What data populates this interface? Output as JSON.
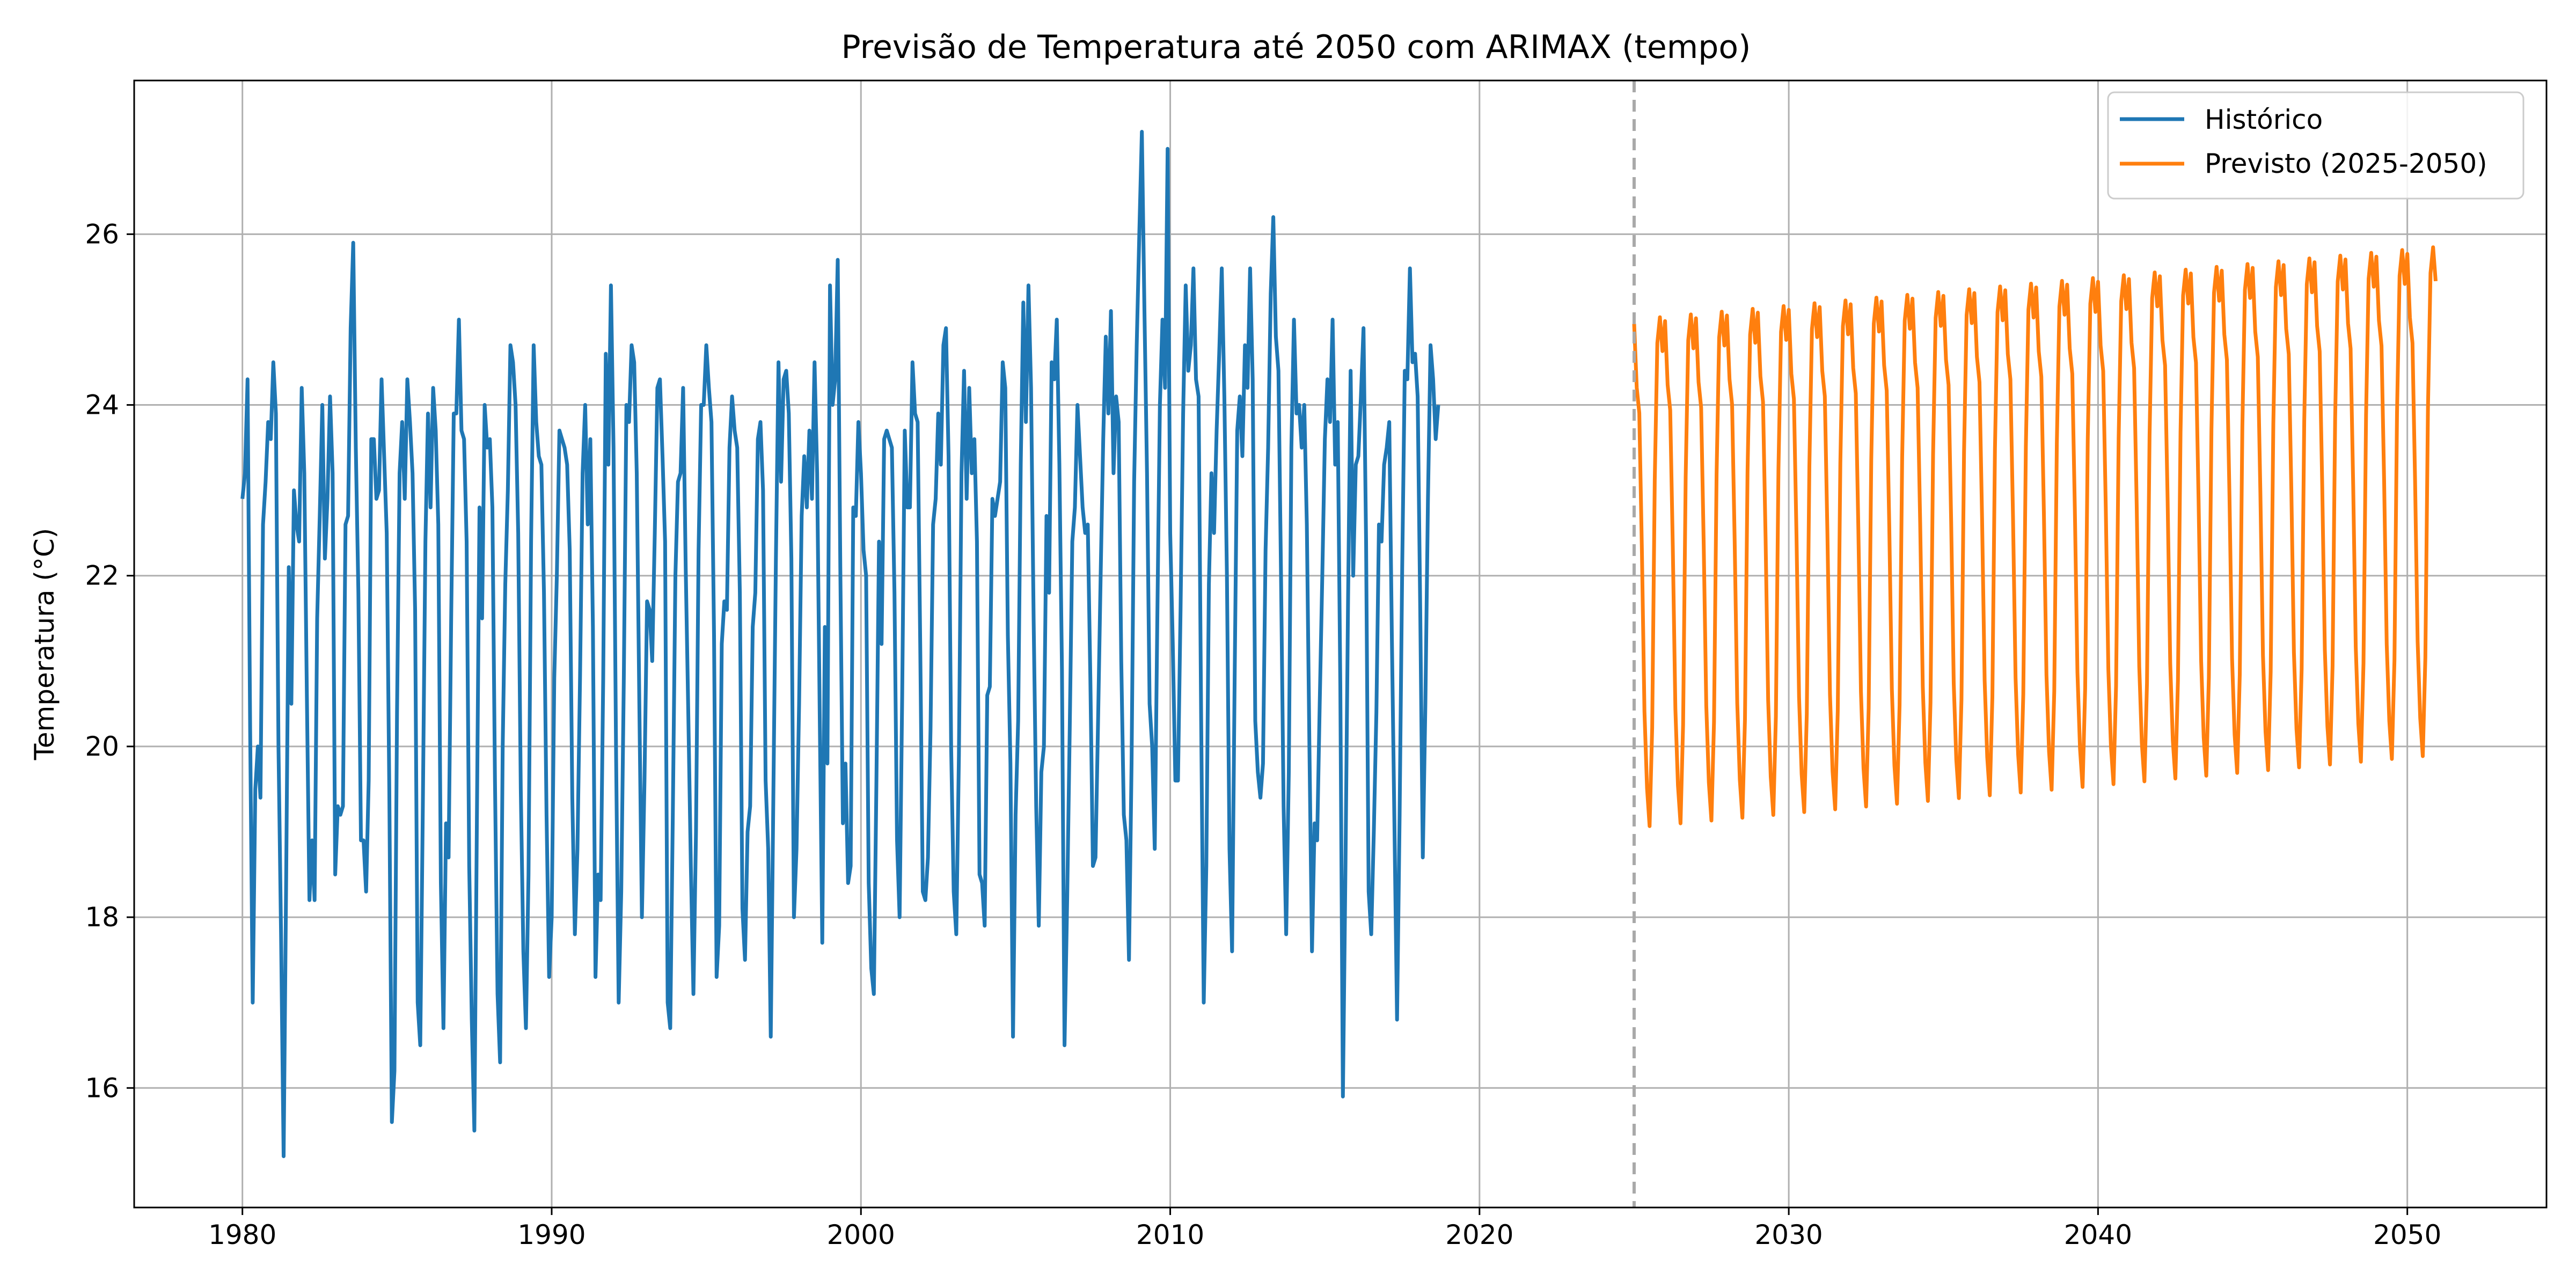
{
  "chart_data": {
    "type": "line",
    "title": "Previsão de Temperatura até 2050 com ARIMAX (tempo)",
    "xlabel": "",
    "ylabel": "Temperatura (°C)",
    "xlim": [
      1976.5,
      2054.5
    ],
    "ylim": [
      14.6,
      27.8
    ],
    "x_ticks": [
      1980,
      1990,
      2000,
      2010,
      2020,
      2030,
      2040,
      2050
    ],
    "y_ticks": [
      16,
      18,
      20,
      22,
      24,
      26
    ],
    "grid": true,
    "legend_position": "top-right",
    "forecast_start_marker": 2025,
    "series": [
      {
        "name": "Histórico",
        "color": "#1f77b4",
        "start_year": 1980.0,
        "step_years": 0.0833333,
        "values": [
          22.9,
          23.2,
          24.3,
          20.2,
          17.0,
          19.5,
          20.0,
          19.4,
          22.6,
          23.1,
          23.8,
          23.6,
          24.5,
          23.9,
          20.0,
          17.8,
          15.2,
          18.5,
          22.1,
          20.5,
          23.0,
          22.6,
          22.4,
          24.2,
          23.2,
          20.6,
          18.2,
          18.9,
          18.2,
          21.5,
          22.7,
          24.0,
          22.2,
          22.9,
          24.1,
          23.2,
          18.5,
          19.3,
          19.2,
          19.3,
          22.6,
          22.7,
          24.9,
          25.9,
          23.5,
          21.8,
          18.9,
          18.9,
          18.3,
          19.6,
          23.6,
          23.6,
          22.9,
          23.0,
          24.3,
          23.4,
          22.5,
          19.5,
          15.6,
          16.2,
          20.4,
          23.2,
          23.8,
          22.9,
          24.3,
          23.8,
          23.2,
          21.6,
          17.0,
          16.5,
          19.3,
          22.4,
          23.9,
          22.8,
          24.2,
          23.7,
          22.6,
          18.4,
          16.7,
          19.1,
          18.7,
          21.5,
          23.9,
          23.9,
          25.0,
          23.7,
          23.6,
          22.4,
          18.6,
          16.8,
          15.5,
          19.2,
          22.8,
          21.5,
          24.0,
          23.5,
          23.6,
          22.8,
          19.6,
          17.1,
          16.3,
          20.0,
          21.9,
          23.0,
          24.7,
          24.5,
          24.0,
          22.5,
          19.5,
          17.6,
          16.7,
          18.5,
          22.4,
          24.7,
          23.8,
          23.4,
          23.3,
          21.8,
          19.2,
          17.3,
          18.0,
          20.8,
          22.0,
          23.7,
          23.6,
          23.5,
          23.3,
          22.3,
          19.4,
          17.8,
          18.8,
          20.8,
          23.2,
          24.0,
          22.6,
          23.6,
          21.4,
          17.3,
          18.5,
          18.2,
          20.8,
          24.6,
          23.3,
          25.4,
          23.5,
          19.9,
          17.0,
          18.3,
          20.8,
          24.0,
          23.8,
          24.7,
          24.5,
          23.2,
          20.5,
          18.0,
          19.6,
          21.7,
          21.6,
          21.0,
          22.5,
          24.2,
          24.3,
          23.4,
          22.4,
          17.0,
          16.7,
          19.2,
          22.0,
          23.1,
          23.2,
          24.2,
          22.1,
          20.4,
          18.6,
          17.1,
          19.0,
          22.3,
          24.0,
          24.0,
          24.7,
          24.2,
          23.8,
          21.3,
          17.3,
          17.9,
          21.2,
          21.7,
          21.6,
          23.5,
          24.1,
          23.7,
          23.5,
          21.8,
          18.1,
          17.5,
          19.0,
          19.3,
          21.4,
          21.8,
          23.6,
          23.8,
          23.0,
          19.6,
          18.8,
          16.6,
          19.4,
          22.2,
          24.5,
          23.1,
          24.3,
          24.4,
          23.9,
          22.2,
          18.0,
          18.8,
          20.5,
          22.7,
          23.4,
          22.8,
          23.7,
          22.9,
          24.5,
          23.2,
          20.4,
          17.7,
          21.4,
          19.8,
          25.4,
          24.0,
          24.3,
          25.7,
          22.1,
          19.1,
          19.8,
          18.4,
          18.6,
          22.8,
          22.7,
          23.8,
          23.2,
          22.3,
          22.0,
          18.4,
          17.4,
          17.1,
          19.6,
          22.4,
          21.2,
          23.6,
          23.7,
          23.6,
          23.5,
          21.8,
          18.9,
          18.0,
          20.6,
          23.7,
          22.8,
          22.8,
          24.5,
          23.9,
          23.8,
          21.2,
          18.3,
          18.2,
          18.7,
          20.2,
          22.6,
          22.9,
          23.9,
          23.3,
          24.7,
          24.9,
          23.4,
          20.0,
          18.3,
          17.8,
          19.9,
          23.2,
          24.4,
          22.9,
          24.2,
          23.2,
          23.6,
          22.4,
          18.5,
          18.4,
          17.9,
          20.6,
          20.7,
          22.9,
          22.7,
          22.9,
          23.1,
          24.5,
          24.2,
          21.3,
          19.8,
          16.6,
          19.2,
          20.3,
          23.3,
          25.2,
          23.8,
          25.4,
          24.2,
          21.5,
          19.3,
          17.9,
          19.7,
          20.0,
          22.7,
          21.8,
          24.5,
          24.3,
          25.0,
          23.3,
          20.9,
          16.5,
          18.2,
          20.2,
          22.4,
          22.8,
          24.0,
          23.4,
          22.8,
          22.5,
          22.6,
          20.8,
          18.6,
          18.7,
          20.3,
          22.0,
          23.6,
          24.8,
          23.9,
          25.1,
          23.2,
          24.1,
          23.8,
          21.0,
          19.2,
          18.9,
          17.5,
          19.8,
          23.1,
          24.7,
          26.0,
          27.2,
          25.1,
          23.2,
          20.5,
          20.0,
          18.8,
          21.5,
          24.0,
          25.0,
          24.2,
          27.0,
          22.5,
          21.2,
          19.6,
          19.6,
          21.6,
          23.9,
          25.4,
          24.4,
          24.7,
          25.6,
          24.3,
          24.1,
          20.3,
          17.0,
          18.6,
          21.9,
          23.2,
          22.5,
          23.7,
          24.6,
          25.6,
          24.1,
          22.0,
          18.8,
          17.6,
          20.8,
          23.7,
          24.1,
          23.4,
          24.7,
          24.2,
          25.6,
          24.3,
          20.3,
          19.7,
          19.4,
          19.8,
          22.3,
          23.5,
          25.3,
          26.2,
          24.8,
          24.4,
          22.0,
          19.3,
          17.8,
          19.7,
          23.5,
          25.0,
          23.9,
          24.0,
          23.5,
          24.0,
          22.6,
          20.0,
          17.6,
          19.1,
          18.9,
          20.5,
          22.0,
          23.6,
          24.3,
          23.8,
          25.0,
          23.3,
          23.8,
          20.7,
          15.9,
          18.6,
          21.7,
          24.4,
          22.0,
          23.3,
          23.4,
          24.1,
          24.9,
          22.4,
          18.3,
          17.8,
          19.0,
          20.4,
          22.6,
          22.4,
          23.3,
          23.5,
          23.8,
          21.3,
          19.1,
          16.8,
          19.2,
          22.1,
          24.4,
          24.3,
          25.6,
          24.5,
          24.6,
          24.1,
          21.6,
          18.7,
          20.5,
          22.9,
          24.7,
          24.3,
          23.6,
          24.0
        ]
      },
      {
        "name": "Previsto (2025-2050)",
        "color": "#ff7f0e",
        "start_year": 2025.0,
        "step_years": 0.0833333,
        "amplitude_start": 2.8,
        "amplitude_end": 2.8,
        "mean_start": 22.0,
        "mean_end": 22.85,
        "note_pattern": "seasonal",
        "values_generated": true
      }
    ]
  }
}
